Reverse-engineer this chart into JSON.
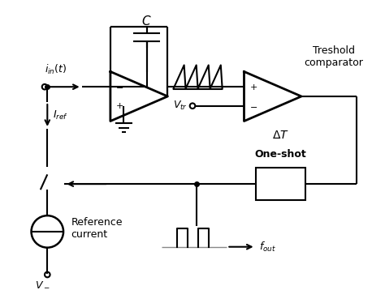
{
  "bg_color": "#ffffff",
  "line_color": "#000000",
  "lw": 1.5,
  "fig_w": 4.74,
  "fig_h": 3.79,
  "labels": {
    "iin": "$i_{in}(t)$",
    "Iref": "$I_{ref}$",
    "C": "$C$",
    "Vtr": "$V_{tr}$",
    "threshold": "Treshold\ncomparator",
    "oneshot": "One-shot",
    "deltaT": "$\\Delta T$",
    "fout": "$f_{out}$",
    "refcurrent": "Reference\ncurrent",
    "Vminus": "$V_-$"
  }
}
